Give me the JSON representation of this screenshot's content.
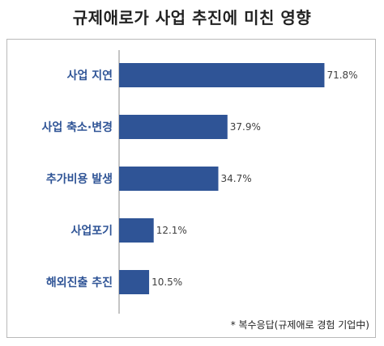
{
  "title": "규제애로가 사업 추진에 미친 영향",
  "note": "* 복수응답(규제애로 경험 기업中)",
  "chart_data": {
    "type": "bar",
    "orientation": "horizontal",
    "title": "규제애로가 사업 추진에 미친 영향",
    "categories": [
      "사업 지연",
      "사업 축소·변경",
      "추가비용 발생",
      "사업포기",
      "해외진출 추진"
    ],
    "values": [
      71.8,
      37.9,
      34.7,
      12.1,
      10.5
    ],
    "value_labels": [
      "71.8%",
      "37.9%",
      "34.7%",
      "12.1%",
      "10.5%"
    ],
    "unit": "%",
    "xlim": [
      0,
      100
    ],
    "grid": false,
    "legend": "none",
    "bar_color": "#2f5496"
  }
}
